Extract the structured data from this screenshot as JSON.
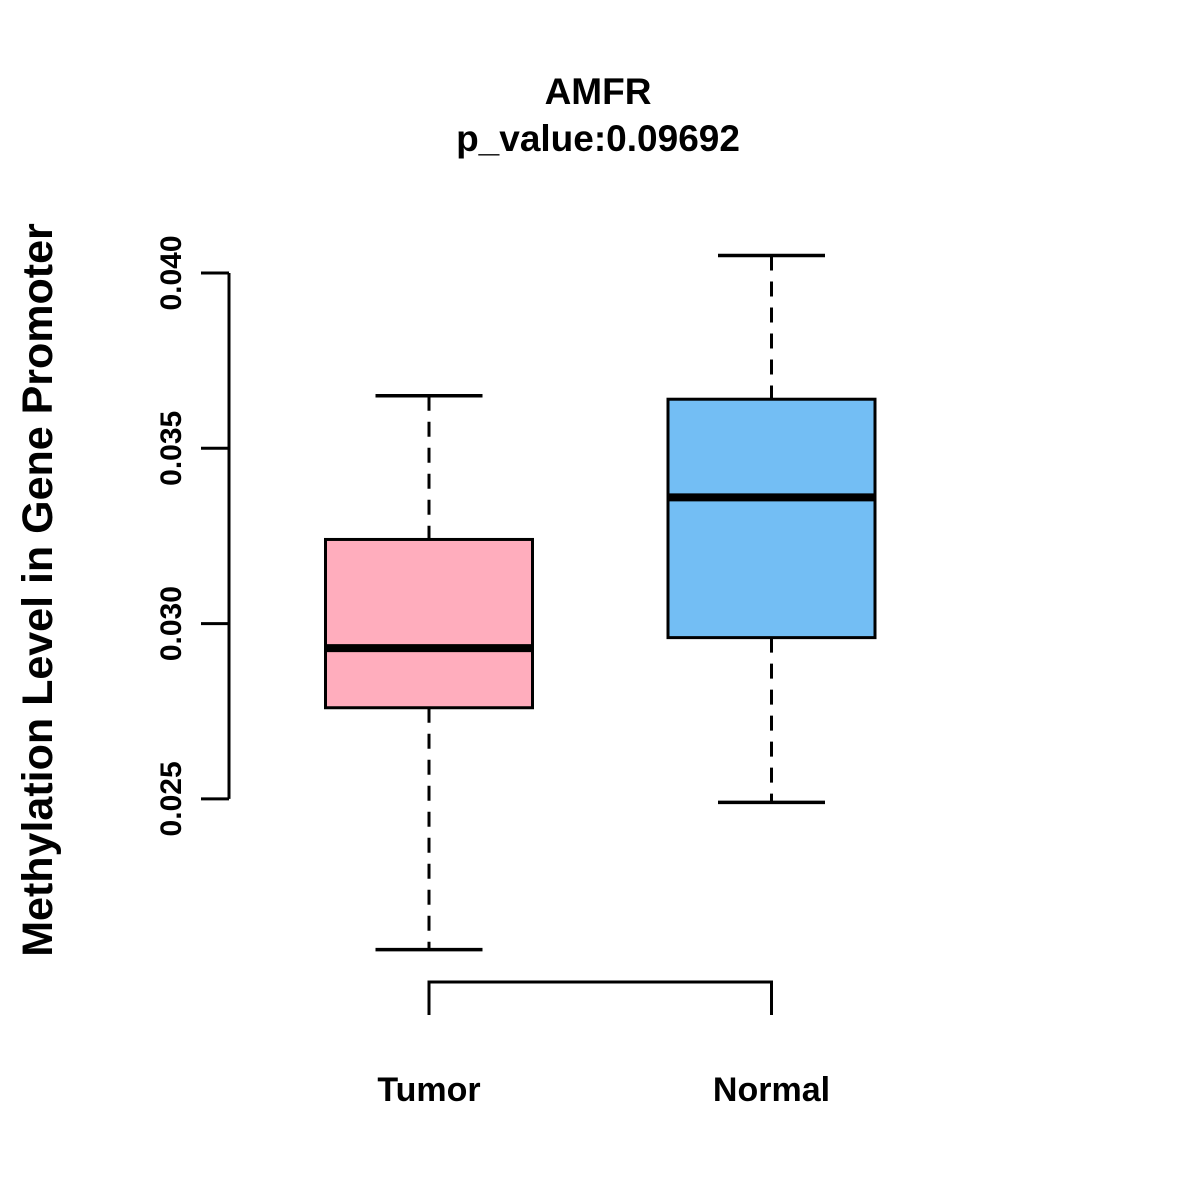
{
  "title": "AMFR",
  "subtitle": "p_value:0.09692",
  "y_axis": {
    "label": "Methylation Level in Gene Promoter",
    "tick_labels": [
      "0.025",
      "0.030",
      "0.035",
      "0.040"
    ]
  },
  "x_axis": {
    "categories": [
      "Tumor",
      "Normal"
    ]
  },
  "colors": {
    "tumor_fill": "#FFADBD",
    "normal_fill": "#73BEF4",
    "box_border": "#000000",
    "median_line": "#000000",
    "axis": "#000000",
    "background": "#FFFFFF"
  },
  "chart_data": {
    "type": "boxplot",
    "gene": "AMFR",
    "p_value": 0.09692,
    "title": "AMFR",
    "subtitle": "p_value:0.09692",
    "ylabel": "Methylation Level in Gene Promoter",
    "xlabel": "",
    "categories": [
      "Tumor",
      "Normal"
    ],
    "yticks": [
      0.025,
      0.03,
      0.035,
      0.04
    ],
    "ytick_labels": [
      "0.025",
      "0.030",
      "0.035",
      "0.040"
    ],
    "ylim": [
      0.0207,
      0.0405
    ],
    "grid": false,
    "legend": "none",
    "whisker_style": "dashed",
    "series": [
      {
        "name": "Tumor",
        "color": "#FFADBD",
        "lower_whisker": 0.0207,
        "q1": 0.0276,
        "median": 0.0293,
        "q3": 0.0324,
        "upper_whisker": 0.0365
      },
      {
        "name": "Normal",
        "color": "#73BEF4",
        "lower_whisker": 0.0249,
        "q1": 0.0296,
        "median": 0.0336,
        "q3": 0.0364,
        "upper_whisker": 0.0405
      }
    ]
  }
}
